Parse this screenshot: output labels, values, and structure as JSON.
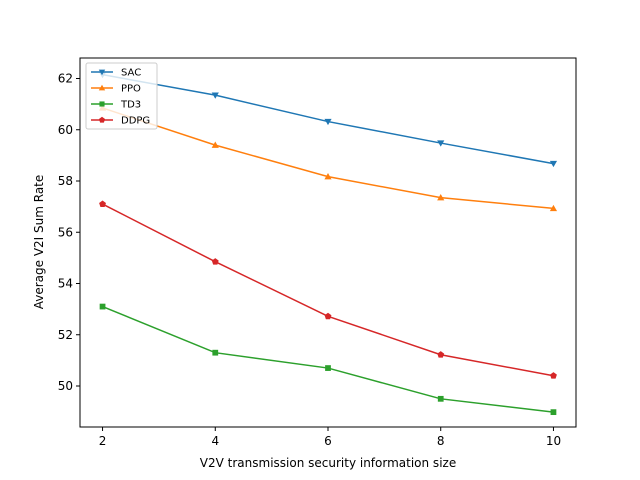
{
  "chart_data": {
    "type": "line",
    "xlabel": "V2V transmission security information size",
    "ylabel": "Average V2I Sum Rate",
    "x": [
      2,
      4,
      6,
      8,
      10
    ],
    "xlim": [
      1.6,
      10.4
    ],
    "ylim": [
      48.4,
      62.8
    ],
    "xticks": [
      2,
      4,
      6,
      8,
      10
    ],
    "yticks": [
      50,
      52,
      54,
      56,
      58,
      60,
      62
    ],
    "grid": false,
    "legend_position": "top-left",
    "series": [
      {
        "name": "SAC",
        "color": "#1f77b4",
        "marker": "triangle-down",
        "values": [
          62.15,
          61.35,
          60.32,
          59.48,
          58.68
        ]
      },
      {
        "name": "PPO",
        "color": "#ff7f0e",
        "marker": "triangle-up",
        "values": [
          60.85,
          59.4,
          58.17,
          57.35,
          56.93
        ]
      },
      {
        "name": "TD3",
        "color": "#2ca02c",
        "marker": "square",
        "values": [
          53.1,
          51.3,
          50.7,
          49.5,
          48.98
        ]
      },
      {
        "name": "DDPG",
        "color": "#d62728",
        "marker": "pentagon",
        "values": [
          57.1,
          54.85,
          52.72,
          51.22,
          50.4
        ]
      }
    ]
  }
}
